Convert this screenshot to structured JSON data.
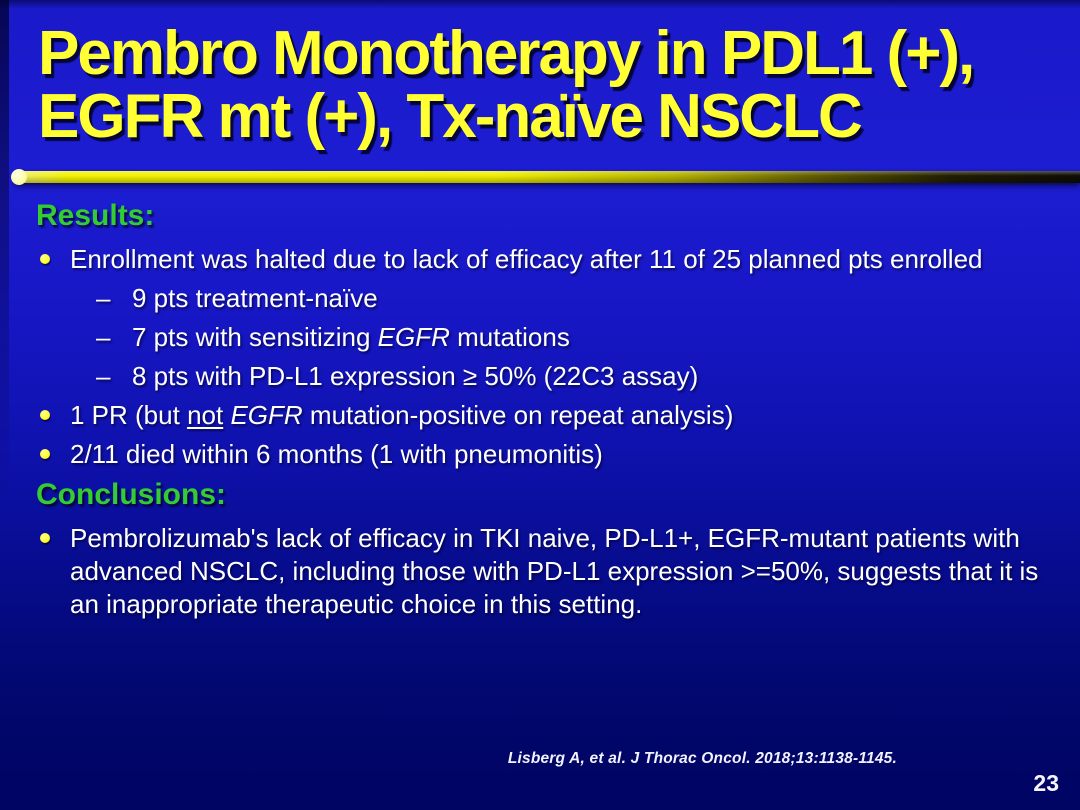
{
  "title": {
    "line1": "Pembro Monotherapy in PDL1 (+),",
    "line2": "EGFR mt (+), Tx-naïve NSCLC"
  },
  "results": {
    "heading": "Results:",
    "bullet1": "Enrollment was halted due to lack of efficacy after 11 of 25 planned pts enrolled",
    "sub1": "9 pts treatment-naïve",
    "sub2_pre": "7 pts with sensitizing ",
    "sub2_italic": "EGFR",
    "sub2_post": " mutations",
    "sub3": "8 pts with PD-L1 expression ≥ 50% (22C3 assay)",
    "bullet2_pre": "1 PR (but ",
    "bullet2_underlined": "not",
    "bullet2_mid": " ",
    "bullet2_italic": "EGFR",
    "bullet2_post": " mutation-positive on repeat analysis)",
    "bullet3": "2/11 died within 6 months (1 with pneumonitis)"
  },
  "conclusions": {
    "heading": "Conclusions:",
    "bullet1": "Pembrolizumab's lack of efficacy in TKI naive, PD-L1+, EGFR-mutant patients with advanced NSCLC, including those with PD-L1 expression >=50%, suggests that it is an inappropriate therapeutic choice in this setting."
  },
  "markers": {
    "dash": "–"
  },
  "footer": {
    "citation": "Lisberg A, et al. J Thorac Oncol. 2018;13:1138-1145.",
    "page_number": "23"
  },
  "colors": {
    "title_yellow": "#ffff33",
    "heading_green": "#33cc33",
    "body_white": "#ffffff",
    "bullet_yellow": "#ffff2e",
    "background_blue_top": "#1d1dd2",
    "background_blue_bottom": "#000566",
    "divider_yellow": "#f2f200"
  }
}
